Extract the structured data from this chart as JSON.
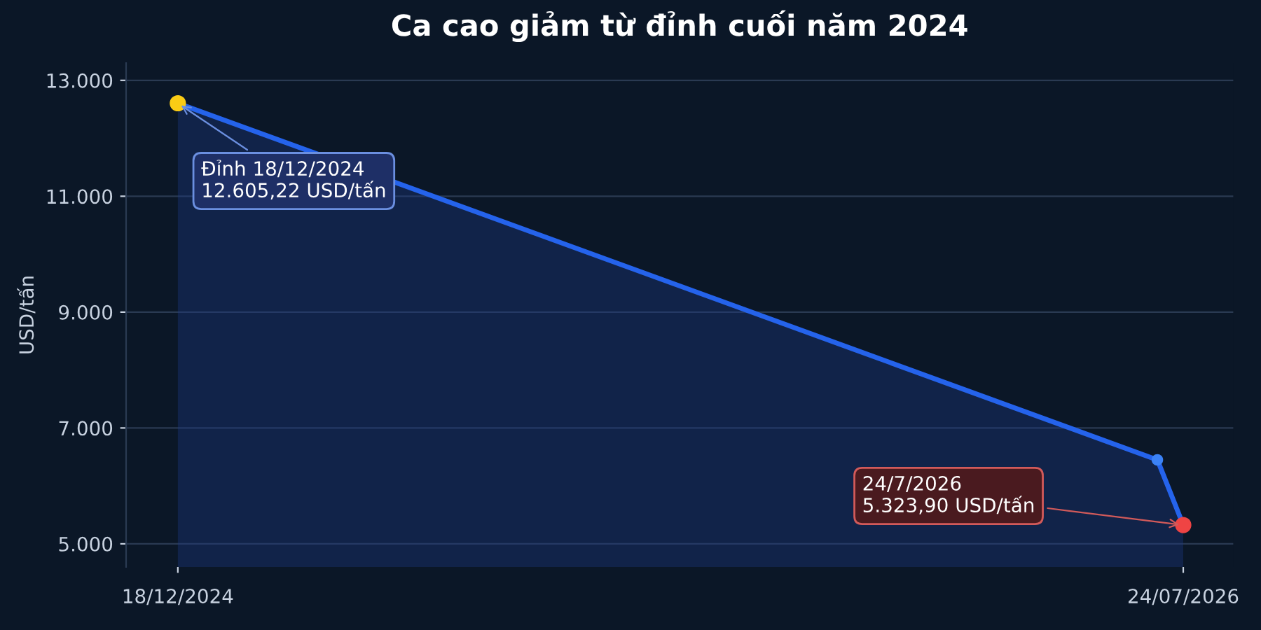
{
  "chart_data": {
    "type": "area",
    "title": "Ca cao giảm từ đỉnh cuối năm 2024",
    "ylabel": "USD/tấn",
    "x": [
      "2024-12-18",
      "2026-07-09",
      "2026-07-24"
    ],
    "series": [
      {
        "color": "#2563eb",
        "colors": [
          "#facc15",
          "#3b82f6",
          "#ef4444"
        ],
        "values": [
          12605.22,
          6450,
          5323.9
        ]
      }
    ],
    "xlim": [
      "2024-11-18",
      "2026-08-22"
    ],
    "xticks": [
      {
        "value": "2024-12-18",
        "label": "18/12/2024"
      },
      {
        "value": "2026-07-24",
        "label": "24/07/2026"
      }
    ],
    "ylim": [
      4600,
      13300
    ],
    "yticks": [
      {
        "value": 5000,
        "label": "5.000"
      },
      {
        "value": 7000,
        "label": "7.000"
      },
      {
        "value": 9000,
        "label": "9.000"
      },
      {
        "value": 11000,
        "label": "11.000"
      },
      {
        "value": 13000,
        "label": "13.000"
      }
    ],
    "grid": "y",
    "marker": "circle",
    "annotations": [
      {
        "text": "Đỉnh 18/12/2024\n12.605,22 USD/tấn",
        "x": "2024-12-18",
        "y": 12605.22
      },
      {
        "text": "24/7/2026\n5.323,90 USD/tấn",
        "x": "2026-07-24",
        "y": 5323.9
      }
    ]
  }
}
